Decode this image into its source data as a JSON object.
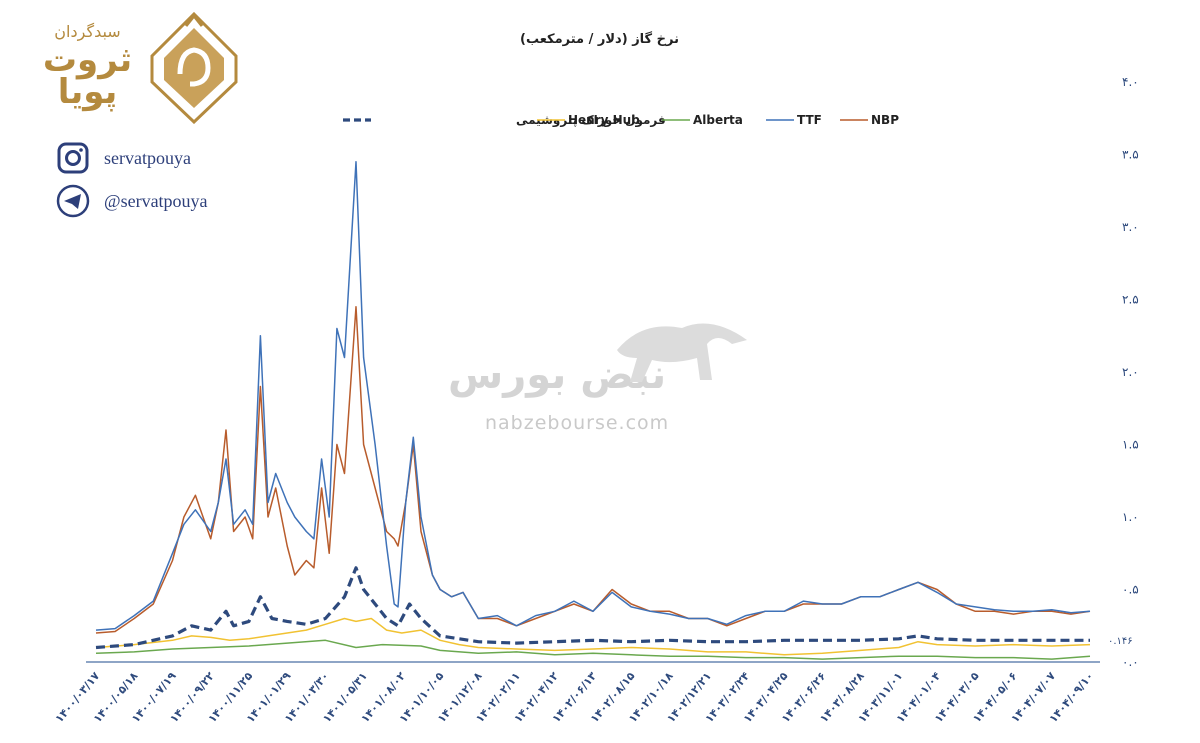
{
  "brand": {
    "tagline": "سبدگردان",
    "name_line1": "ثروت",
    "name_line2": "پویا",
    "instagram": "servatpouya",
    "telegram": "@servatpouya",
    "gold": "#b48a3e",
    "navy": "#2d3f7a"
  },
  "watermark": {
    "name": "نبض بورس",
    "site": "nabzebourse.com"
  },
  "chart_data": {
    "type": "line",
    "title": "نرخ گاز (دلار / مترمکعب)",
    "ylim": [
      0,
      4.0
    ],
    "y_ticks": [
      "۰.۰",
      "۰.۵",
      "۱.۰",
      "۱.۵",
      "۲.۰",
      "۲.۵",
      "۳.۰",
      "۳.۵",
      "۴.۰"
    ],
    "y_tick_values": [
      0,
      0.5,
      1.0,
      1.5,
      2.0,
      2.5,
      3.0,
      3.5,
      4.0
    ],
    "reference_label": "۰.۱۴۶",
    "reference_value": 0.146,
    "categories": [
      "۱۴۰۰/۰۳/۱۷",
      "۱۴۰۰/۰۵/۱۸",
      "۱۴۰۰/۰۷/۱۹",
      "۱۴۰۰/۰۹/۲۲",
      "۱۴۰۰/۱۱/۲۵",
      "۱۴۰۱/۰۱/۲۹",
      "۱۴۰۱/۰۳/۳۰",
      "۱۴۰۱/۰۵/۳۱",
      "۱۴۰۱/۰۸/۰۲",
      "۱۴۰۱/۱۰/۰۵",
      "۱۴۰۱/۱۲/۰۸",
      "۱۴۰۲/۰۲/۱۱",
      "۱۴۰۲/۰۴/۱۲",
      "۱۴۰۲/۰۶/۱۳",
      "۱۴۰۲/۰۸/۱۵",
      "۱۴۰۲/۱۰/۱۸",
      "۱۴۰۲/۱۲/۲۱",
      "۱۴۰۳/۰۲/۲۴",
      "۱۴۰۳/۰۴/۲۵",
      "۱۴۰۳/۰۶/۲۶",
      "۱۴۰۳/۰۸/۲۸",
      "۱۴۰۳/۱۱/۰۱",
      "۱۴۰۴/۰۱/۰۴",
      "۱۴۰۴/۰۳/۰۵",
      "۱۴۰۴/۰۵/۰۶",
      "۱۴۰۴/۰۷/۰۷",
      "۱۴۰۴/۰۹/۱۰"
    ],
    "legend_position": "top",
    "series": [
      {
        "name": "NBP",
        "color": "#b85c2c",
        "dash": false,
        "values": [
          [
            0,
            0.2
          ],
          [
            0.5,
            0.21
          ],
          [
            1,
            0.3
          ],
          [
            1.5,
            0.4
          ],
          [
            2,
            0.7
          ],
          [
            2.3,
            1.0
          ],
          [
            2.6,
            1.15
          ],
          [
            3,
            0.85
          ],
          [
            3.2,
            1.1
          ],
          [
            3.4,
            1.6
          ],
          [
            3.6,
            0.9
          ],
          [
            3.9,
            1.0
          ],
          [
            4.1,
            0.85
          ],
          [
            4.3,
            1.9
          ],
          [
            4.5,
            1.0
          ],
          [
            4.7,
            1.2
          ],
          [
            5.0,
            0.8
          ],
          [
            5.2,
            0.6
          ],
          [
            5.5,
            0.7
          ],
          [
            5.7,
            0.65
          ],
          [
            5.9,
            1.2
          ],
          [
            6.1,
            0.75
          ],
          [
            6.3,
            1.5
          ],
          [
            6.5,
            1.3
          ],
          [
            6.8,
            2.45
          ],
          [
            7.0,
            1.5
          ],
          [
            7.3,
            1.2
          ],
          [
            7.6,
            0.9
          ],
          [
            7.8,
            0.85
          ],
          [
            7.9,
            0.8
          ],
          [
            8.1,
            1.1
          ],
          [
            8.3,
            1.5
          ],
          [
            8.5,
            0.9
          ],
          [
            8.8,
            0.6
          ],
          [
            9.0,
            0.5
          ],
          [
            9.3,
            0.45
          ],
          [
            9.6,
            0.48
          ],
          [
            10,
            0.3
          ],
          [
            10.5,
            0.3
          ],
          [
            11,
            0.25
          ],
          [
            11.5,
            0.3
          ],
          [
            12,
            0.35
          ],
          [
            12.5,
            0.4
          ],
          [
            13,
            0.35
          ],
          [
            13.5,
            0.5
          ],
          [
            14,
            0.4
          ],
          [
            14.5,
            0.35
          ],
          [
            15,
            0.35
          ],
          [
            15.5,
            0.3
          ],
          [
            16,
            0.3
          ],
          [
            16.5,
            0.25
          ],
          [
            17,
            0.3
          ],
          [
            17.5,
            0.35
          ],
          [
            18,
            0.35
          ],
          [
            18.5,
            0.4
          ],
          [
            19,
            0.4
          ],
          [
            19.5,
            0.4
          ],
          [
            20,
            0.45
          ],
          [
            20.5,
            0.45
          ],
          [
            21,
            0.5
          ],
          [
            21.5,
            0.55
          ],
          [
            22,
            0.5
          ],
          [
            22.5,
            0.4
          ],
          [
            23,
            0.35
          ],
          [
            23.5,
            0.35
          ],
          [
            24,
            0.33
          ],
          [
            24.5,
            0.35
          ],
          [
            25,
            0.35
          ],
          [
            25.5,
            0.33
          ],
          [
            26,
            0.35
          ]
        ]
      },
      {
        "name": "TTF",
        "color": "#3f72b8",
        "dash": false,
        "values": [
          [
            0,
            0.22
          ],
          [
            0.5,
            0.23
          ],
          [
            1,
            0.32
          ],
          [
            1.5,
            0.42
          ],
          [
            2,
            0.75
          ],
          [
            2.3,
            0.95
          ],
          [
            2.6,
            1.05
          ],
          [
            3,
            0.9
          ],
          [
            3.2,
            1.1
          ],
          [
            3.4,
            1.4
          ],
          [
            3.6,
            0.95
          ],
          [
            3.9,
            1.05
          ],
          [
            4.1,
            0.95
          ],
          [
            4.3,
            2.25
          ],
          [
            4.5,
            1.1
          ],
          [
            4.7,
            1.3
          ],
          [
            5.0,
            1.1
          ],
          [
            5.2,
            1.0
          ],
          [
            5.5,
            0.9
          ],
          [
            5.7,
            0.85
          ],
          [
            5.9,
            1.4
          ],
          [
            6.1,
            1.0
          ],
          [
            6.3,
            2.3
          ],
          [
            6.5,
            2.1
          ],
          [
            6.8,
            3.45
          ],
          [
            7.0,
            2.1
          ],
          [
            7.3,
            1.5
          ],
          [
            7.6,
            0.8
          ],
          [
            7.8,
            0.4
          ],
          [
            7.9,
            0.38
          ],
          [
            8.1,
            1.1
          ],
          [
            8.3,
            1.55
          ],
          [
            8.5,
            1.0
          ],
          [
            8.8,
            0.6
          ],
          [
            9.0,
            0.5
          ],
          [
            9.3,
            0.45
          ],
          [
            9.6,
            0.48
          ],
          [
            10,
            0.3
          ],
          [
            10.5,
            0.32
          ],
          [
            11,
            0.25
          ],
          [
            11.5,
            0.32
          ],
          [
            12,
            0.35
          ],
          [
            12.5,
            0.42
          ],
          [
            13,
            0.35
          ],
          [
            13.5,
            0.48
          ],
          [
            14,
            0.38
          ],
          [
            14.5,
            0.35
          ],
          [
            15,
            0.33
          ],
          [
            15.5,
            0.3
          ],
          [
            16,
            0.3
          ],
          [
            16.5,
            0.26
          ],
          [
            17,
            0.32
          ],
          [
            17.5,
            0.35
          ],
          [
            18,
            0.35
          ],
          [
            18.5,
            0.42
          ],
          [
            19,
            0.4
          ],
          [
            19.5,
            0.4
          ],
          [
            20,
            0.45
          ],
          [
            20.5,
            0.45
          ],
          [
            21,
            0.5
          ],
          [
            21.5,
            0.55
          ],
          [
            22,
            0.48
          ],
          [
            22.5,
            0.4
          ],
          [
            23,
            0.38
          ],
          [
            23.5,
            0.36
          ],
          [
            24,
            0.35
          ],
          [
            24.5,
            0.35
          ],
          [
            25,
            0.36
          ],
          [
            25.5,
            0.34
          ],
          [
            26,
            0.35
          ]
        ]
      },
      {
        "name": "Alberta",
        "color": "#6aa84f",
        "dash": false,
        "values": [
          [
            0,
            0.06
          ],
          [
            1,
            0.07
          ],
          [
            2,
            0.09
          ],
          [
            3,
            0.1
          ],
          [
            4,
            0.11
          ],
          [
            5,
            0.13
          ],
          [
            6,
            0.15
          ],
          [
            6.8,
            0.1
          ],
          [
            7.5,
            0.12
          ],
          [
            8.5,
            0.11
          ],
          [
            9,
            0.08
          ],
          [
            10,
            0.06
          ],
          [
            11,
            0.07
          ],
          [
            12,
            0.05
          ],
          [
            13,
            0.06
          ],
          [
            14,
            0.05
          ],
          [
            15,
            0.04
          ],
          [
            16,
            0.04
          ],
          [
            17,
            0.03
          ],
          [
            18,
            0.03
          ],
          [
            19,
            0.02
          ],
          [
            20,
            0.03
          ],
          [
            21,
            0.04
          ],
          [
            22,
            0.04
          ],
          [
            23,
            0.03
          ],
          [
            24,
            0.03
          ],
          [
            25,
            0.02
          ],
          [
            26,
            0.04
          ]
        ]
      },
      {
        "name": "Henry Hub",
        "color": "#f1c232",
        "dash": false,
        "values": [
          [
            0,
            0.1
          ],
          [
            1,
            0.12
          ],
          [
            2,
            0.15
          ],
          [
            2.5,
            0.18
          ],
          [
            3,
            0.17
          ],
          [
            3.5,
            0.15
          ],
          [
            4,
            0.16
          ],
          [
            4.5,
            0.18
          ],
          [
            5,
            0.2
          ],
          [
            5.5,
            0.22
          ],
          [
            6,
            0.26
          ],
          [
            6.5,
            0.3
          ],
          [
            6.8,
            0.28
          ],
          [
            7.2,
            0.3
          ],
          [
            7.6,
            0.22
          ],
          [
            8,
            0.2
          ],
          [
            8.5,
            0.22
          ],
          [
            9,
            0.15
          ],
          [
            9.5,
            0.12
          ],
          [
            10,
            0.1
          ],
          [
            11,
            0.09
          ],
          [
            12,
            0.08
          ],
          [
            13,
            0.09
          ],
          [
            14,
            0.1
          ],
          [
            15,
            0.09
          ],
          [
            16,
            0.07
          ],
          [
            17,
            0.07
          ],
          [
            18,
            0.05
          ],
          [
            19,
            0.06
          ],
          [
            20,
            0.08
          ],
          [
            21,
            0.1
          ],
          [
            21.5,
            0.14
          ],
          [
            22,
            0.12
          ],
          [
            23,
            0.11
          ],
          [
            24,
            0.12
          ],
          [
            25,
            0.11
          ],
          [
            26,
            0.12
          ]
        ]
      },
      {
        "name": "فرمول خوراک پتروشیمی",
        "color": "#2e4a7d",
        "dash": true,
        "values": [
          [
            0,
            0.1
          ],
          [
            1,
            0.12
          ],
          [
            2,
            0.18
          ],
          [
            2.5,
            0.25
          ],
          [
            3,
            0.22
          ],
          [
            3.4,
            0.35
          ],
          [
            3.6,
            0.25
          ],
          [
            4,
            0.28
          ],
          [
            4.3,
            0.45
          ],
          [
            4.6,
            0.3
          ],
          [
            5,
            0.28
          ],
          [
            5.5,
            0.26
          ],
          [
            6,
            0.3
          ],
          [
            6.5,
            0.45
          ],
          [
            6.8,
            0.65
          ],
          [
            7,
            0.5
          ],
          [
            7.3,
            0.4
          ],
          [
            7.6,
            0.3
          ],
          [
            7.9,
            0.25
          ],
          [
            8.2,
            0.4
          ],
          [
            8.5,
            0.3
          ],
          [
            9,
            0.18
          ],
          [
            10,
            0.14
          ],
          [
            11,
            0.13
          ],
          [
            12,
            0.14
          ],
          [
            13,
            0.15
          ],
          [
            14,
            0.14
          ],
          [
            15,
            0.15
          ],
          [
            16,
            0.14
          ],
          [
            17,
            0.14
          ],
          [
            18,
            0.15
          ],
          [
            19,
            0.15
          ],
          [
            20,
            0.15
          ],
          [
            21,
            0.16
          ],
          [
            21.5,
            0.18
          ],
          [
            22,
            0.16
          ],
          [
            23,
            0.15
          ],
          [
            24,
            0.15
          ],
          [
            25,
            0.15
          ],
          [
            26,
            0.15
          ]
        ]
      }
    ]
  }
}
